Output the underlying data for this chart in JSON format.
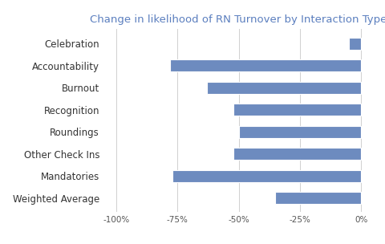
{
  "title": "Change in likelihood of RN Turnover by Interaction Type",
  "title_color": "#5b7fbf",
  "categories": [
    "Weighted Average",
    "Mandatories",
    "Other Check Ins",
    "Roundings",
    "Recognition",
    "Burnout",
    "Accountability",
    "Celebration"
  ],
  "values": [
    -35,
    -77,
    -52,
    -50,
    -52,
    -63,
    -78,
    -5
  ],
  "bar_color": "#6d8bbf",
  "background_color": "#ffffff",
  "xlim": [
    -105,
    5
  ],
  "xticks": [
    -100,
    -75,
    -50,
    -25,
    0
  ],
  "xtick_labels": [
    "-100%",
    "-75%",
    "-50%",
    "-25%",
    "0%"
  ],
  "grid_color": "#d0d0d0",
  "tick_label_color": "#555555",
  "category_label_color": "#333333",
  "figsize": [
    4.8,
    3.04
  ],
  "dpi": 100,
  "bar_height": 0.55,
  "title_fontsize": 9.5,
  "tick_fontsize": 7.5,
  "ylabel_fontsize": 8.5
}
